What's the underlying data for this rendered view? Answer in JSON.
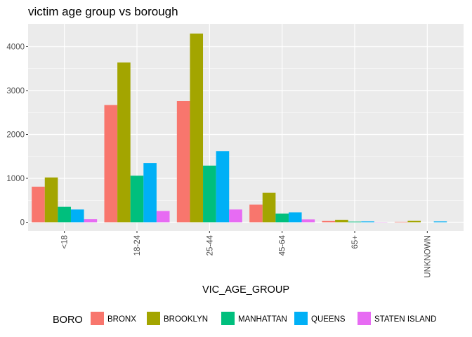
{
  "chart_data": {
    "type": "bar",
    "title": "victim age group vs borough",
    "xlabel": "VIC_AGE_GROUP",
    "ylabel": "",
    "categories": [
      "<18",
      "18-24",
      "25-44",
      "45-64",
      "65+",
      "UNKNOWN"
    ],
    "yticks": [
      0,
      1000,
      2000,
      3000,
      4000
    ],
    "ylim": [
      -200,
      4520
    ],
    "grid": true,
    "legend": {
      "title": "BORO",
      "placement": "bottom"
    },
    "series": [
      {
        "name": "BRONX",
        "color": "#F8766D",
        "values": [
          810,
          2670,
          2760,
          400,
          28,
          10
        ]
      },
      {
        "name": "BROOKLYN",
        "color": "#A3A500",
        "values": [
          1020,
          3640,
          4300,
          670,
          55,
          30
        ]
      },
      {
        "name": "MANHATTAN",
        "color": "#00BF7D",
        "values": [
          350,
          1060,
          1290,
          195,
          14,
          0
        ]
      },
      {
        "name": "QUEENS",
        "color": "#00B0F6",
        "values": [
          290,
          1350,
          1620,
          225,
          18,
          18
        ]
      },
      {
        "name": "STATEN ISLAND",
        "color": "#E76BF3",
        "values": [
          70,
          255,
          290,
          65,
          5,
          0
        ]
      }
    ]
  }
}
